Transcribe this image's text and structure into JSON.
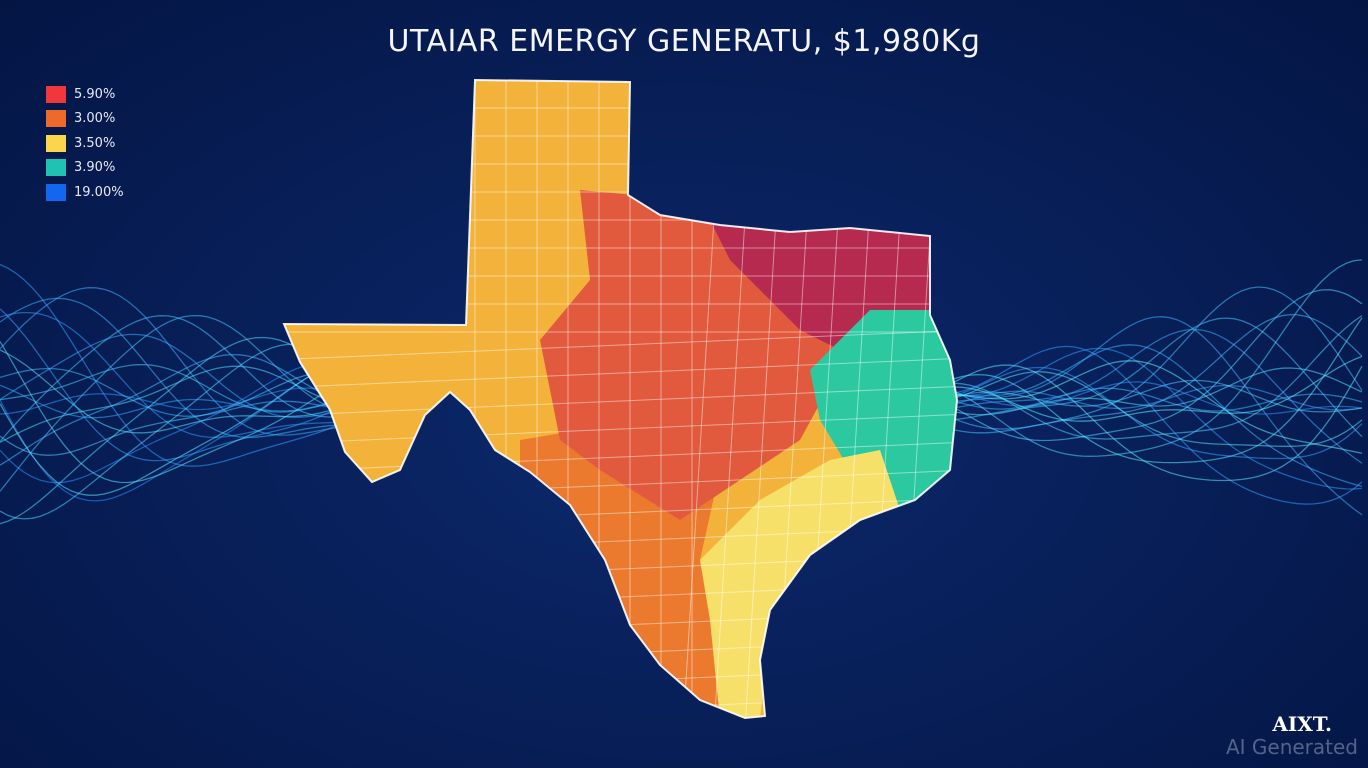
{
  "title": "UTAIAR EMERGY GENERATU, $1,980Kɡ",
  "legend": [
    {
      "label": "5.90%",
      "color": "#f0373c"
    },
    {
      "label": "3.00%",
      "color": "#ee6a2c"
    },
    {
      "label": "3.50%",
      "color": "#fbd64a"
    },
    {
      "label": "3.90%",
      "color": "#20c2b4"
    },
    {
      "label": "19.00%",
      "color": "#1466f0"
    }
  ],
  "region_colors": {
    "west": "#f3b33a",
    "central": "#e25a3e",
    "northeast": "#b52a4e",
    "east": "#2cc9a0",
    "coast": "#f7e06a",
    "south": "#ec7a2e"
  },
  "logo": "AIXT.",
  "watermark": "AI Generated"
}
